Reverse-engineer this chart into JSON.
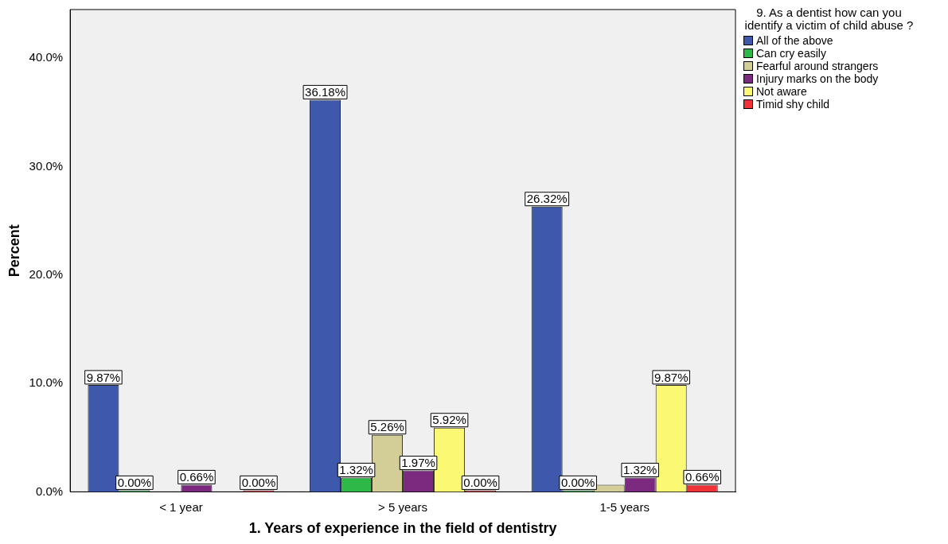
{
  "chart_data": {
    "type": "bar",
    "xlabel": "1. Years of experience in the field of dentistry",
    "ylabel": "Percent",
    "legend_title": "9. As a dentist how can you identify a victim of child abuse ?",
    "legend": "right",
    "grid": false,
    "categories": [
      "< 1 year",
      "> 5 years",
      "1-5 years"
    ],
    "ylim": [
      0,
      44.5
    ],
    "yticks": [
      {
        "value": 0,
        "label": "0.0%"
      },
      {
        "value": 10,
        "label": "10.0%"
      },
      {
        "value": 20,
        "label": "20.0%"
      },
      {
        "value": 30,
        "label": "30.0%"
      },
      {
        "value": 40,
        "label": "40.0%"
      }
    ],
    "series": [
      {
        "name": "All of the above",
        "color": "#3e58ac",
        "values": [
          9.87,
          36.18,
          26.32
        ],
        "value_labels": [
          "9.87%",
          "36.18%",
          "26.32%"
        ]
      },
      {
        "name": "Can cry easily",
        "color": "#2eb848",
        "values": [
          0,
          1.32,
          0
        ],
        "value_labels": [
          "0.00%",
          "1.32%",
          "0.00%"
        ]
      },
      {
        "name": "Fearful around strangers",
        "color": "#d3ce97",
        "values": [
          null,
          5.26,
          0.66
        ],
        "value_labels": [
          null,
          "5.26%",
          null
        ]
      },
      {
        "name": "Injury marks on the body",
        "color": "#7c2a80",
        "values": [
          0.66,
          1.97,
          1.32
        ],
        "value_labels": [
          "0.66%",
          "1.97%",
          "1.32%"
        ]
      },
      {
        "name": "Not aware",
        "color": "#fbf873",
        "values": [
          null,
          5.92,
          9.87
        ],
        "value_labels": [
          null,
          "5.92%",
          "9.87%"
        ]
      },
      {
        "name": "Timid shy child",
        "color": "#ef3338",
        "values": [
          0,
          0,
          0.66
        ],
        "value_labels": [
          "0.00%",
          "0.00%",
          "0.66%"
        ]
      }
    ]
  }
}
